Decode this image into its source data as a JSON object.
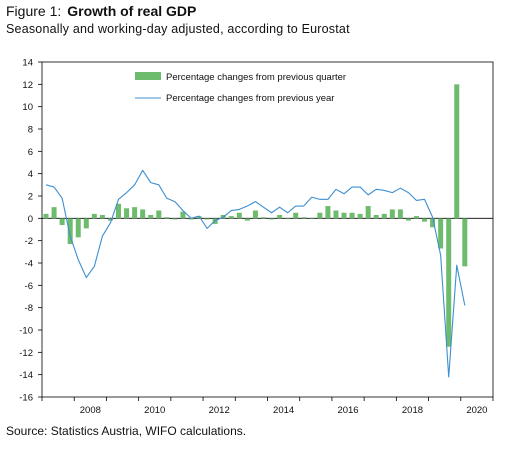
{
  "figure": {
    "label": "Figure 1:",
    "title": "Growth of real GDP",
    "subtitle": "Seasonally and working-day adjusted, according to Eurostat",
    "source": "Source: Statistics Austria, WIFO calculations."
  },
  "chart_data": {
    "type": "bar",
    "ylim": [
      -16,
      14
    ],
    "y_ticks": [
      14,
      12,
      10,
      8,
      6,
      4,
      2,
      0,
      -2,
      -4,
      -6,
      -8,
      -10,
      -12,
      -14,
      -16
    ],
    "x_tick_labels": [
      "2008",
      "2010",
      "2012",
      "2014",
      "2016",
      "2018",
      "2020"
    ],
    "x_start_year": 2007,
    "quarters_count": 56,
    "grid": false,
    "legend_position": "top-right",
    "colors": {
      "bars": "#6dbb6d",
      "line": "#3d8fd1"
    },
    "series": [
      {
        "name": "Percentage changes from previous quarter",
        "type": "bar",
        "values": [
          0.4,
          1.0,
          -0.6,
          -2.3,
          -1.7,
          -0.9,
          0.4,
          0.3,
          -0.2,
          1.3,
          0.9,
          1.0,
          0.8,
          0.3,
          0.7,
          0.1,
          -0.1,
          0.6,
          -0.1,
          0.2,
          -0.1,
          -0.5,
          0.3,
          0.2,
          0.5,
          -0.2,
          0.7,
          0.1,
          -0.1,
          0.3,
          0.0,
          0.5,
          0.1,
          0.0,
          0.5,
          1.1,
          0.7,
          0.5,
          0.5,
          0.4,
          1.1,
          0.3,
          0.4,
          0.8,
          0.8,
          -0.2,
          0.2,
          -0.3,
          -0.8,
          -2.7,
          -11.5,
          12.0,
          -4.3
        ]
      },
      {
        "name": "Percentage changes from previous year",
        "type": "line",
        "values": [
          3.0,
          2.8,
          1.8,
          -1.6,
          -3.7,
          -5.3,
          -4.3,
          -1.6,
          -0.4,
          1.7,
          2.3,
          3.0,
          4.3,
          3.2,
          3.0,
          1.8,
          1.5,
          0.7,
          0.0,
          0.2,
          -0.9,
          -0.2,
          0.1,
          0.7,
          0.8,
          1.1,
          1.5,
          1.0,
          0.5,
          1.0,
          0.5,
          1.1,
          1.1,
          1.9,
          1.7,
          1.7,
          2.6,
          2.2,
          2.8,
          2.8,
          2.1,
          2.6,
          2.5,
          2.3,
          2.7,
          2.3,
          1.6,
          1.7,
          0.1,
          -3.3,
          -14.2,
          -4.2,
          -7.8
        ]
      }
    ]
  }
}
